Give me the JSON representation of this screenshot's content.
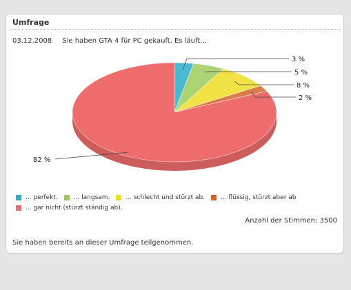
{
  "panel": {
    "title": "Umfrage"
  },
  "poll": {
    "date": "03.12.2008",
    "question": "Sie haben GTA 4 für PC gekauft. Es läuft...",
    "votes_text": "Anzahl der Stimmen: 3500",
    "footer": "Sie haben bereits an dieser Umfrage teilgenommen."
  },
  "chart_data": {
    "type": "pie",
    "slices": [
      {
        "label": "... perfekt.",
        "value": 3,
        "value_label": "3 %",
        "color": "#2aaecb"
      },
      {
        "label": "... langsam.",
        "value": 5,
        "value_label": "5 %",
        "color": "#9ecb5c"
      },
      {
        "label": "... schlecht und stürzt ab.",
        "value": 8,
        "value_label": "8 %",
        "color": "#efdd24"
      },
      {
        "label": "... flüssig, stürzt aber ab",
        "value": 2,
        "value_label": "2 %",
        "color": "#d2642a"
      },
      {
        "label": "... gar nicht (stürzt ständig ab).",
        "value": 82,
        "value_label": "82 %",
        "color": "#ee6c6b"
      }
    ],
    "legend_position": "bottom"
  }
}
